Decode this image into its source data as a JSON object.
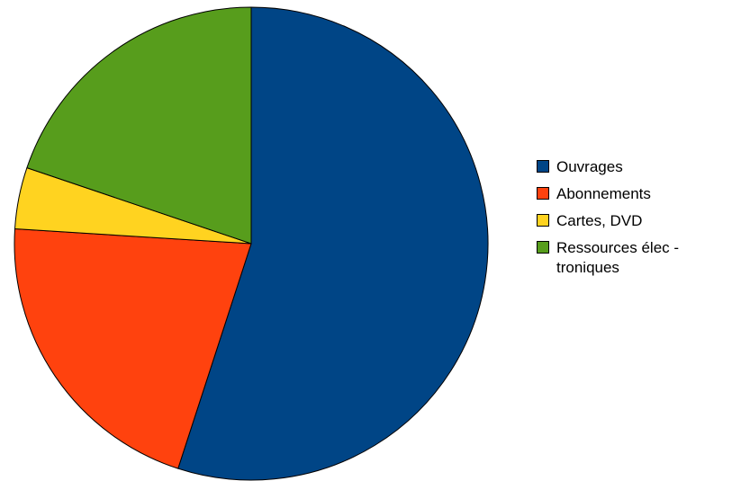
{
  "chart_data": {
    "type": "pie",
    "title": "",
    "start_angle_deg": 0,
    "direction": "clockwise",
    "series": [
      {
        "name": "Ouvrages",
        "value": 55.0,
        "color": "#004586"
      },
      {
        "name": "Abonnements",
        "value": 21.0,
        "color": "#FF420E"
      },
      {
        "name": "Cartes, DVD",
        "value": 4.2,
        "color": "#FFD320"
      },
      {
        "name": "Ressources élec -\ntroniques",
        "value": 19.8,
        "color": "#579D1C"
      }
    ],
    "legend": {
      "position": "right"
    }
  }
}
